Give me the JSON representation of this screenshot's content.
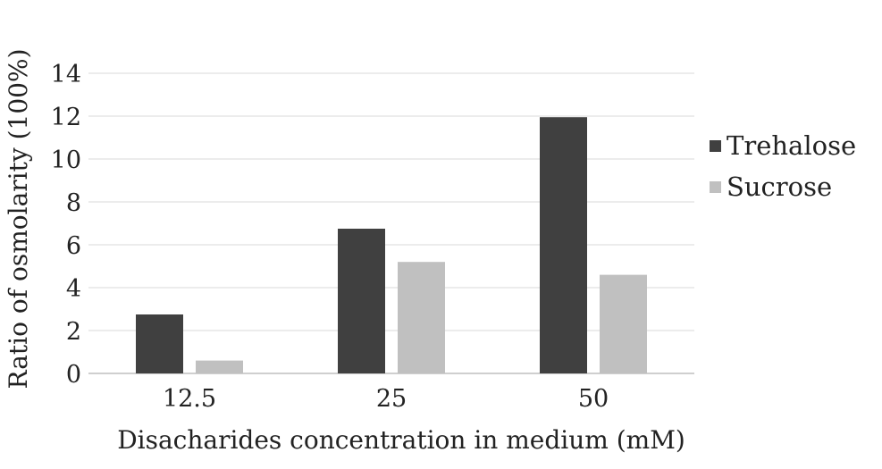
{
  "chart_data": {
    "type": "bar",
    "title": "",
    "xlabel": "Disacharides concentration in medium (mM)",
    "ylabel": "Ratio of osmolarity (100%)",
    "categories": [
      "12.5",
      "25",
      "50"
    ],
    "ylim": [
      0,
      14
    ],
    "yticks": [
      0,
      2,
      4,
      6,
      8,
      10,
      12,
      14
    ],
    "grid": true,
    "legend_position": "right",
    "series": [
      {
        "name": "Trehalose",
        "color": "#404040",
        "values": [
          2.75,
          6.75,
          11.95
        ]
      },
      {
        "name": "Sucrose",
        "color": "#c0c0c0",
        "values": [
          0.6,
          5.2,
          4.6
        ]
      }
    ]
  }
}
